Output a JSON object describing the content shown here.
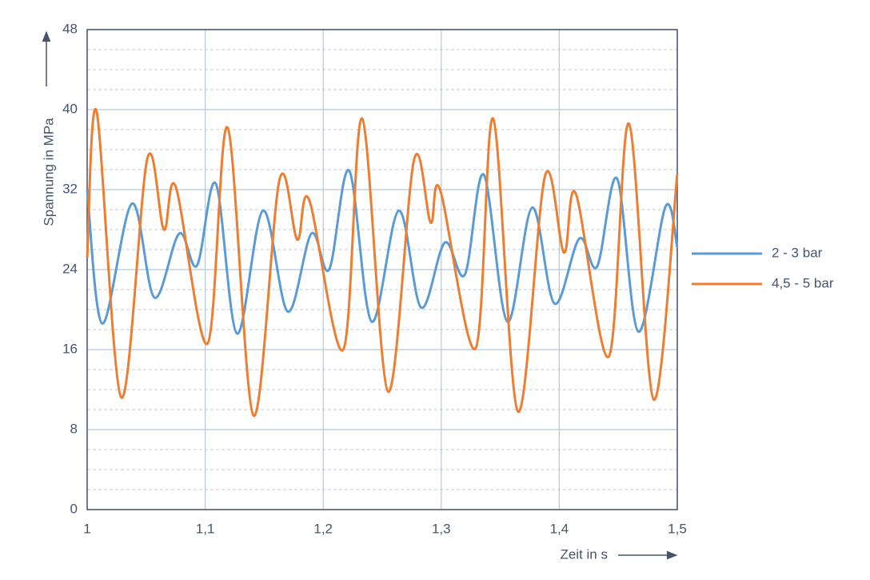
{
  "chart_data": {
    "type": "line",
    "xlabel": "Zeit in s",
    "ylabel": "Spannung in MPa",
    "xlim": [
      1,
      1.5
    ],
    "xticks": [
      1,
      {
        "value": 1.1,
        "label": "1,1"
      },
      {
        "value": 1.2,
        "label": "1,2"
      },
      {
        "value": 1.3,
        "label": "1,3"
      },
      {
        "value": 1.4,
        "label": "1,4"
      },
      {
        "value": 1.5,
        "label": "1,5"
      }
    ],
    "ylim": [
      0,
      48
    ],
    "yticks": [
      0,
      8,
      16,
      24,
      32,
      40,
      48
    ],
    "grid": true,
    "legend": "right",
    "series": [
      {
        "name": "2 - 3 bar",
        "color": "#5b9bd5",
        "x": [
          1,
          1.0129,
          1.038,
          1.057,
          1.078,
          1.093,
          1.109,
          1.127,
          1.149,
          1.17,
          1.19,
          1.205,
          1.222,
          1.241,
          1.264,
          1.283,
          1.303,
          1.32,
          1.336,
          1.356,
          1.377,
          1.396,
          1.417,
          1.432,
          1.449,
          1.467,
          1.49,
          1.5
        ],
        "values": [
          32,
          18.6,
          30.6,
          21.2,
          27.6,
          24.4,
          32.6,
          17.6,
          29.9,
          19.8,
          27.6,
          24,
          33.9,
          18.8,
          29.9,
          20.2,
          26.7,
          23.5,
          33.5,
          18.8,
          30.2,
          20.6,
          27.1,
          24.3,
          33.1,
          17.8,
          30.3,
          26.2
        ]
      },
      {
        "name": "4,5 - 5 bar",
        "color": "#ed7d31",
        "x": [
          1,
          1.008,
          1.029,
          1.051,
          1.065,
          1.075,
          1.102,
          1.119,
          1.141,
          1.163,
          1.178,
          1.188,
          1.217,
          1.233,
          1.255,
          1.277,
          1.291,
          1.299,
          1.329,
          1.344,
          1.365,
          1.388,
          1.404,
          1.414,
          1.442,
          1.459,
          1.48,
          1.5
        ],
        "values": [
          25.2,
          39.8,
          11.2,
          35.1,
          28,
          32.3,
          16.6,
          38.2,
          9.4,
          33,
          27,
          31,
          16,
          39.1,
          11.8,
          35,
          28.7,
          32,
          16.1,
          39.1,
          9.8,
          33.4,
          25.7,
          31.6,
          15.3,
          38.6,
          11,
          33.6
        ]
      }
    ]
  }
}
